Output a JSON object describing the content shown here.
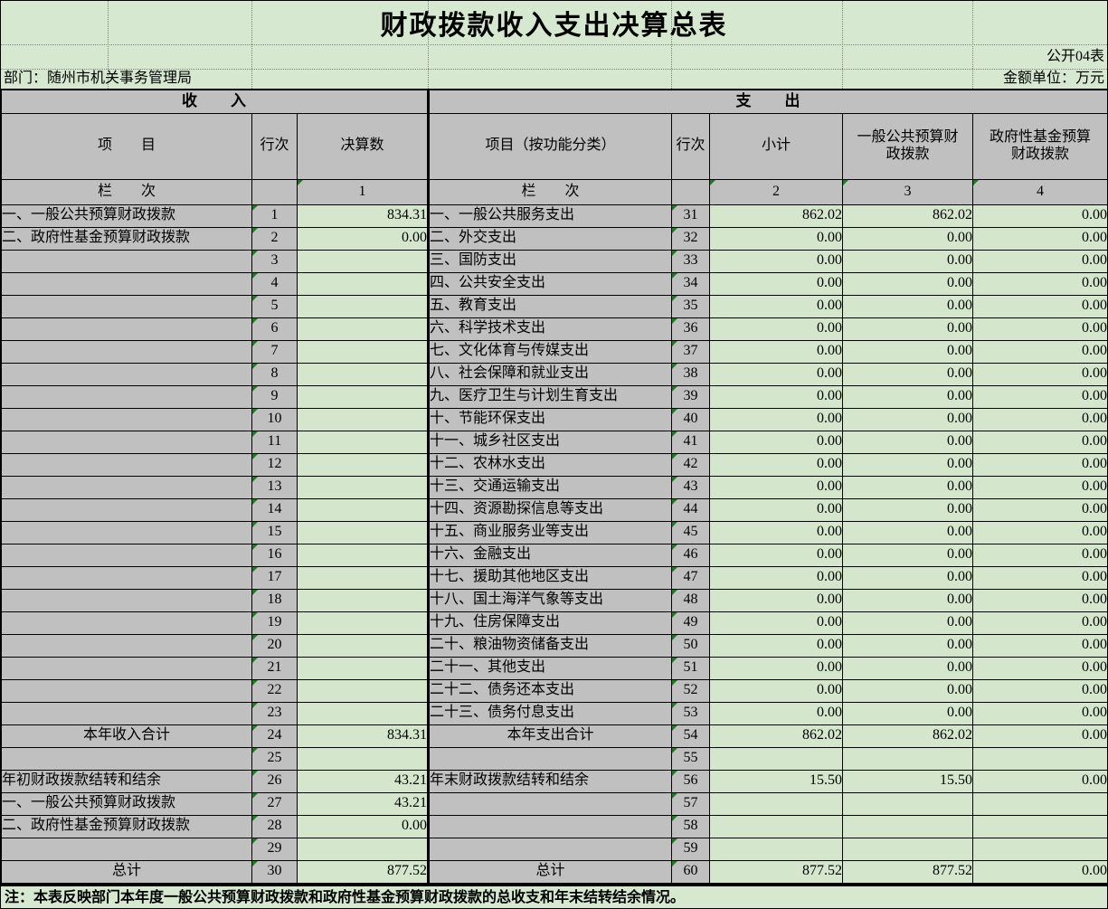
{
  "page": {
    "title": "财政拨款收入支出决算总表",
    "table_code": "公开04表",
    "department": "部门：随州市机关事务管理局",
    "unit": "金额单位：万元",
    "note": "注：本表反映部门本年度一般公共预算财政拨款和政府性基金预算财政拨款的总收支和年末结转结余情况。"
  },
  "header": {
    "income_section": "收　　入",
    "expense_section": "支　　出",
    "col_item": "项　　目",
    "col_line": "行次",
    "col_final": "决算数",
    "col_item_func": "项目（按功能分类）",
    "col_line2": "行次",
    "col_subtotal": "小计",
    "col_general": "一般公共预算财\n政拨款",
    "col_fund": "政府性基金预算\n财政拨款",
    "lanci_left": "栏　　次",
    "lanci_right": "栏　　次",
    "num1": "1",
    "num2": "2",
    "num3": "3",
    "num4": "4"
  },
  "income_rows": [
    {
      "label": "一、一般公共预算财政拨款",
      "line": "1",
      "value": "834.31",
      "bold": false
    },
    {
      "label": "二、政府性基金预算财政拨款",
      "line": "2",
      "value": "0.00",
      "bold": false
    },
    {
      "label": "",
      "line": "3",
      "value": "",
      "bold": false
    },
    {
      "label": "",
      "line": "4",
      "value": "",
      "bold": false
    },
    {
      "label": "",
      "line": "5",
      "value": "",
      "bold": false
    },
    {
      "label": "",
      "line": "6",
      "value": "",
      "bold": false
    },
    {
      "label": "",
      "line": "7",
      "value": "",
      "bold": false
    },
    {
      "label": "",
      "line": "8",
      "value": "",
      "bold": false
    },
    {
      "label": "",
      "line": "9",
      "value": "",
      "bold": false
    },
    {
      "label": "",
      "line": "10",
      "value": "",
      "bold": false
    },
    {
      "label": "",
      "line": "11",
      "value": "",
      "bold": false
    },
    {
      "label": "",
      "line": "12",
      "value": "",
      "bold": false
    },
    {
      "label": "",
      "line": "13",
      "value": "",
      "bold": false
    },
    {
      "label": "",
      "line": "14",
      "value": "",
      "bold": false
    },
    {
      "label": "",
      "line": "15",
      "value": "",
      "bold": false
    },
    {
      "label": "",
      "line": "16",
      "value": "",
      "bold": false
    },
    {
      "label": "",
      "line": "17",
      "value": "",
      "bold": false
    },
    {
      "label": "",
      "line": "18",
      "value": "",
      "bold": false
    },
    {
      "label": "",
      "line": "19",
      "value": "",
      "bold": false
    },
    {
      "label": "",
      "line": "20",
      "value": "",
      "bold": false
    },
    {
      "label": "",
      "line": "21",
      "value": "",
      "bold": false
    },
    {
      "label": "",
      "line": "22",
      "value": "",
      "bold": false
    },
    {
      "label": "",
      "line": "23",
      "value": "",
      "bold": false
    },
    {
      "label": "本年收入合计",
      "line": "24",
      "value": "834.31",
      "bold": true
    },
    {
      "label": "",
      "line": "25",
      "value": "",
      "bold": false
    },
    {
      "label": "年初财政拨款结转和结余",
      "line": "26",
      "value": "43.21",
      "bold": false
    },
    {
      "label": "一、一般公共预算财政拨款",
      "line": "27",
      "value": "43.21",
      "bold": false
    },
    {
      "label": "二、政府性基金预算财政拨款",
      "line": "28",
      "value": "0.00",
      "bold": false
    },
    {
      "label": "",
      "line": "29",
      "value": "",
      "bold": false
    },
    {
      "label": "总计",
      "line": "30",
      "value": "877.52",
      "bold": true
    }
  ],
  "expense_rows": [
    {
      "label": "一、一般公共服务支出",
      "line": "31",
      "subtotal": "862.02",
      "general": "862.02",
      "fund": "0.00",
      "bold": false
    },
    {
      "label": "二、外交支出",
      "line": "32",
      "subtotal": "0.00",
      "general": "0.00",
      "fund": "0.00",
      "bold": false
    },
    {
      "label": "三、国防支出",
      "line": "33",
      "subtotal": "0.00",
      "general": "0.00",
      "fund": "0.00",
      "bold": false
    },
    {
      "label": "四、公共安全支出",
      "line": "34",
      "subtotal": "0.00",
      "general": "0.00",
      "fund": "0.00",
      "bold": false
    },
    {
      "label": "五、教育支出",
      "line": "35",
      "subtotal": "0.00",
      "general": "0.00",
      "fund": "0.00",
      "bold": false
    },
    {
      "label": "六、科学技术支出",
      "line": "36",
      "subtotal": "0.00",
      "general": "0.00",
      "fund": "0.00",
      "bold": false
    },
    {
      "label": "七、文化体育与传媒支出",
      "line": "37",
      "subtotal": "0.00",
      "general": "0.00",
      "fund": "0.00",
      "bold": false
    },
    {
      "label": "八、社会保障和就业支出",
      "line": "38",
      "subtotal": "0.00",
      "general": "0.00",
      "fund": "0.00",
      "bold": false
    },
    {
      "label": "九、医疗卫生与计划生育支出",
      "line": "39",
      "subtotal": "0.00",
      "general": "0.00",
      "fund": "0.00",
      "bold": false
    },
    {
      "label": "十、节能环保支出",
      "line": "40",
      "subtotal": "0.00",
      "general": "0.00",
      "fund": "0.00",
      "bold": false
    },
    {
      "label": "十一、城乡社区支出",
      "line": "41",
      "subtotal": "0.00",
      "general": "0.00",
      "fund": "0.00",
      "bold": false
    },
    {
      "label": "十二、农林水支出",
      "line": "42",
      "subtotal": "0.00",
      "general": "0.00",
      "fund": "0.00",
      "bold": false
    },
    {
      "label": "十三、交通运输支出",
      "line": "43",
      "subtotal": "0.00",
      "general": "0.00",
      "fund": "0.00",
      "bold": false
    },
    {
      "label": "十四、资源勘探信息等支出",
      "line": "44",
      "subtotal": "0.00",
      "general": "0.00",
      "fund": "0.00",
      "bold": false
    },
    {
      "label": "十五、商业服务业等支出",
      "line": "45",
      "subtotal": "0.00",
      "general": "0.00",
      "fund": "0.00",
      "bold": false
    },
    {
      "label": "十六、金融支出",
      "line": "46",
      "subtotal": "0.00",
      "general": "0.00",
      "fund": "0.00",
      "bold": false
    },
    {
      "label": "十七、援助其他地区支出",
      "line": "47",
      "subtotal": "0.00",
      "general": "0.00",
      "fund": "0.00",
      "bold": false
    },
    {
      "label": "十八、国土海洋气象等支出",
      "line": "48",
      "subtotal": "0.00",
      "general": "0.00",
      "fund": "0.00",
      "bold": false
    },
    {
      "label": "十九、住房保障支出",
      "line": "49",
      "subtotal": "0.00",
      "general": "0.00",
      "fund": "0.00",
      "bold": false
    },
    {
      "label": "二十、粮油物资储备支出",
      "line": "50",
      "subtotal": "0.00",
      "general": "0.00",
      "fund": "0.00",
      "bold": false
    },
    {
      "label": "二十一、其他支出",
      "line": "51",
      "subtotal": "0.00",
      "general": "0.00",
      "fund": "0.00",
      "bold": false
    },
    {
      "label": "二十二、债务还本支出",
      "line": "52",
      "subtotal": "0.00",
      "general": "0.00",
      "fund": "0.00",
      "bold": false
    },
    {
      "label": "二十三、债务付息支出",
      "line": "53",
      "subtotal": "0.00",
      "general": "0.00",
      "fund": "0.00",
      "bold": false
    },
    {
      "label": "本年支出合计",
      "line": "54",
      "subtotal": "862.02",
      "general": "862.02",
      "fund": "0.00",
      "bold": true
    },
    {
      "label": "",
      "line": "55",
      "subtotal": "",
      "general": "",
      "fund": "",
      "bold": false
    },
    {
      "label": "年末财政拨款结转和结余",
      "line": "56",
      "subtotal": "15.50",
      "general": "15.50",
      "fund": "0.00",
      "bold": false
    },
    {
      "label": "",
      "line": "57",
      "subtotal": "",
      "general": "",
      "fund": "",
      "bold": false
    },
    {
      "label": "",
      "line": "58",
      "subtotal": "",
      "general": "",
      "fund": "",
      "bold": false
    },
    {
      "label": "",
      "line": "59",
      "subtotal": "",
      "general": "",
      "fund": "",
      "bold": false
    },
    {
      "label": "总计",
      "line": "60",
      "subtotal": "877.52",
      "general": "877.52",
      "fund": "0.00",
      "bold": true
    }
  ],
  "colors": {
    "cell_gray": "#c0c0c0",
    "cell_green": "#d4e7cc",
    "sheet_green": "#d6e8d0",
    "flag_green": "#1d7d1d",
    "border": "#000000"
  }
}
